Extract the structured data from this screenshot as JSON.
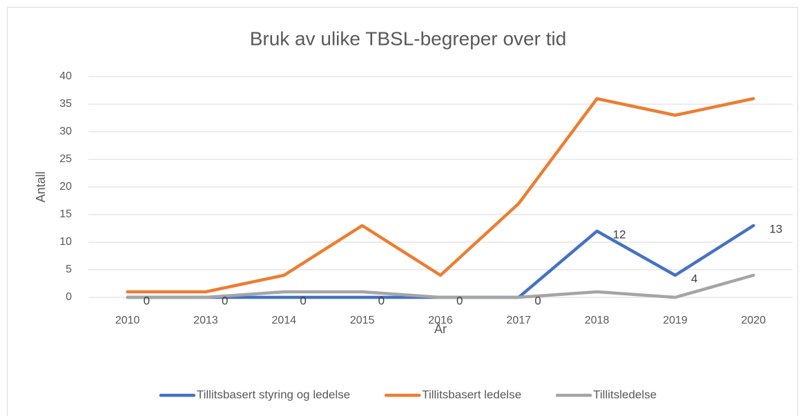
{
  "chart_data": {
    "type": "line",
    "title": "Bruk av ulike TBSL-begreper over tid",
    "x_label": "År",
    "y_label": "Antall",
    "categories": [
      "2010",
      "2013",
      "2014",
      "2015",
      "2016",
      "2017",
      "2018",
      "2019",
      "2020"
    ],
    "series": [
      {
        "name": "Tillitsbasert styring og ledelse",
        "color": "#4472c4",
        "values": [
          0,
          0,
          0,
          0,
          0,
          0,
          12,
          4,
          13
        ],
        "data_labels": true
      },
      {
        "name": "Tillitsbasert ledelse",
        "color": "#ed7d31",
        "values": [
          1,
          1,
          4,
          13,
          4,
          17,
          36,
          33,
          36
        ],
        "data_labels": false
      },
      {
        "name": "Tillitsledelse",
        "color": "#a5a5a5",
        "values": [
          0,
          0,
          1,
          1,
          0,
          0,
          1,
          0,
          4
        ],
        "data_labels": false
      }
    ],
    "ylim": [
      0,
      40
    ],
    "yticks": [
      0,
      5,
      10,
      15,
      20,
      25,
      30,
      35,
      40
    ],
    "grid": true,
    "legend": "bottom"
  }
}
